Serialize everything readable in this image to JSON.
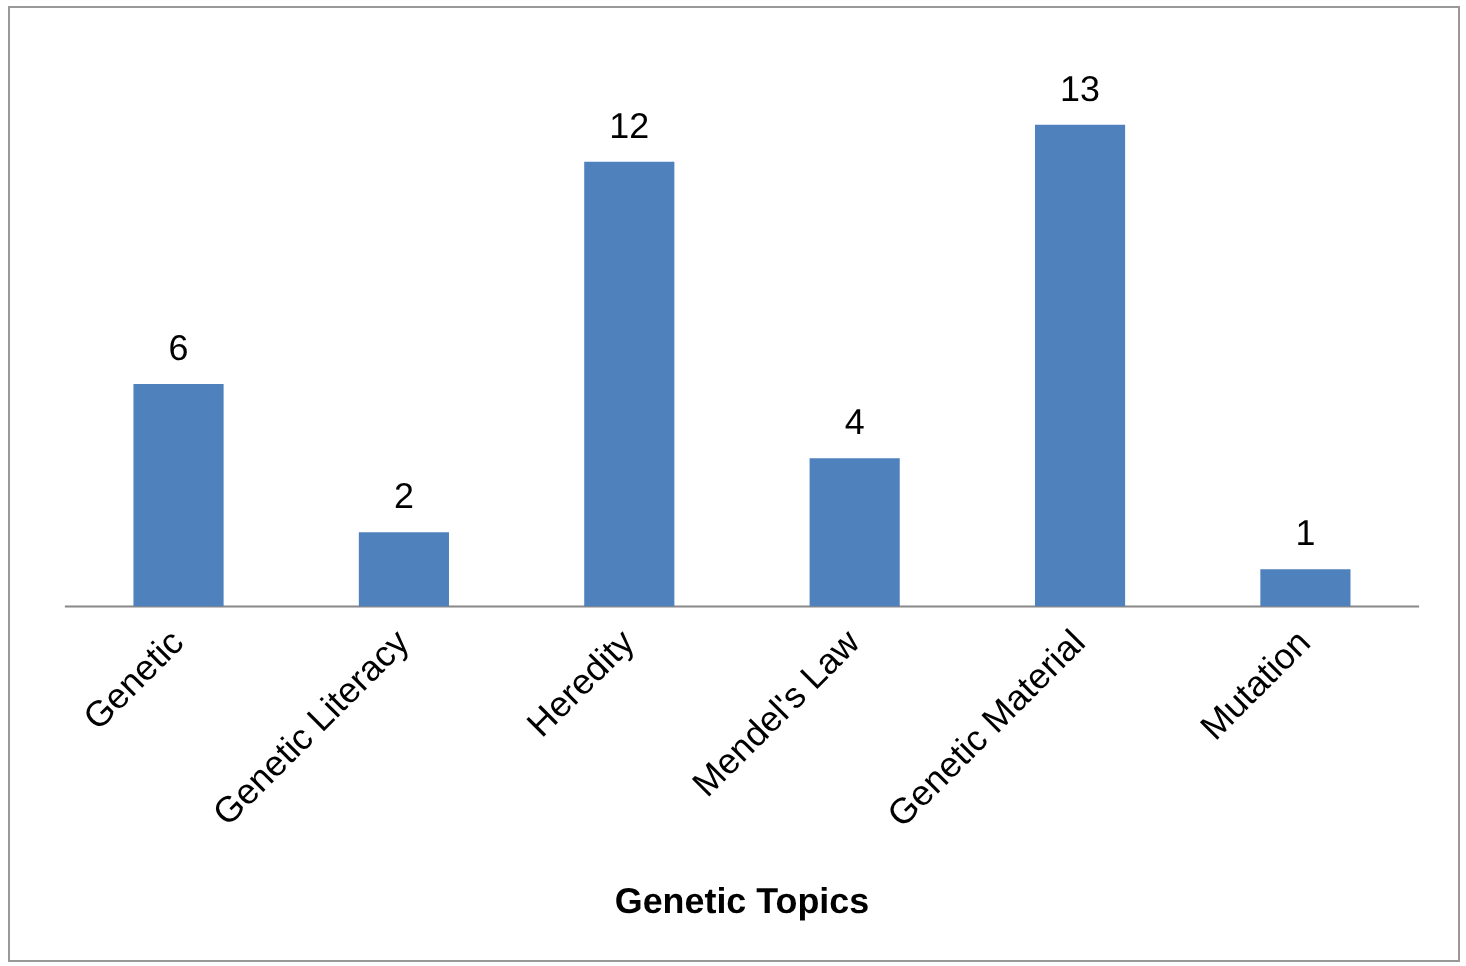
{
  "chart_data": {
    "type": "bar",
    "xlabel": "Genetic Topics",
    "categories": [
      "Genetic",
      "Genetic Literacy",
      "Heredity",
      "Mendel's Law",
      "Genetic Material",
      "Mutation"
    ],
    "values": [
      6,
      2,
      12,
      4,
      13,
      1
    ],
    "color": "#4f81bd",
    "data_labels": true,
    "grid": false,
    "legend": false
  }
}
